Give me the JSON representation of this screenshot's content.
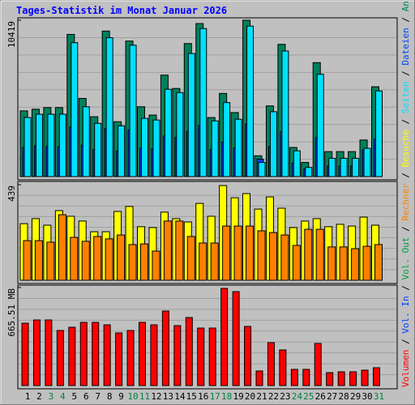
{
  "title": "Tages-Statistik im Monat Januar 2026",
  "legend_separator": " / ",
  "chart_data": [
    {
      "type": "bar",
      "ylim": [
        0,
        10419
      ],
      "yticks": [
        10419
      ],
      "series": [
        {
          "name": "Anfragen",
          "color": "#00805c",
          "values": [
            4378,
            4489,
            4600,
            4600,
            9477,
            5209,
            3990,
            9698,
            3658,
            9033,
            4655,
            4101,
            6761,
            5874,
            8867,
            10197,
            3935,
            5542,
            4267,
            10419,
            1386,
            4711,
            8812,
            1940,
            942,
            7593,
            1663,
            1663,
            1663,
            2438,
            5985
          ]
        },
        {
          "name": "Dateien",
          "color": "#0040ff",
          "values": [
            1950,
            2050,
            2000,
            1980,
            3300,
            2100,
            1800,
            3200,
            1700,
            3100,
            1900,
            1850,
            2700,
            2600,
            3000,
            3400,
            1800,
            2300,
            1900,
            3500,
            1164,
            2000,
            3000,
            900,
            500,
            2600,
            700,
            700,
            700,
            1773,
            2500
          ]
        },
        {
          "name": "Seiten",
          "color": "#00e0ff",
          "values": [
            3935,
            4157,
            4157,
            4157,
            8923,
            4655,
            3547,
            9255,
            3381,
            8756,
            3879,
            3769,
            5819,
            5597,
            8202,
            9865,
            3713,
            4932,
            3824,
            10031,
            942,
            4323,
            8368,
            1718,
            610,
            6817,
            1219,
            1219,
            1219,
            1884,
            5708
          ]
        }
      ]
    },
    {
      "type": "bar",
      "ylim": [
        0,
        439
      ],
      "yticks": [
        439
      ],
      "series": [
        {
          "name": "Besuche",
          "color": "#ffff00",
          "values": [
            260,
            283,
            253,
            320,
            294,
            272,
            223,
            223,
            316,
            339,
            246,
            242,
            313,
            283,
            268,
            353,
            294,
            435,
            379,
            398,
            327,
            383,
            331,
            242,
            272,
            283,
            246,
            257,
            249,
            290,
            253
          ]
        },
        {
          "name": "Rechner",
          "color": "#ff8000",
          "values": [
            182,
            182,
            175,
            301,
            197,
            179,
            201,
            190,
            208,
            164,
            167,
            134,
            272,
            272,
            201,
            171,
            171,
            249,
            249,
            249,
            227,
            219,
            208,
            160,
            234,
            234,
            153,
            153,
            145,
            156,
            164
          ]
        }
      ]
    },
    {
      "type": "bar",
      "ylim": [
        0,
        665.51
      ],
      "yticks": [
        {
          "value": 665.51,
          "label": "665.51 MB"
        }
      ],
      "categories": [
        "1",
        "2",
        "3",
        "4",
        "5",
        "6",
        "7",
        "8",
        "9",
        "10",
        "11",
        "12",
        "13",
        "14",
        "15",
        "16",
        "17",
        "18",
        "19",
        "20",
        "21",
        "22",
        "23",
        "24",
        "25",
        "26",
        "27",
        "28",
        "29",
        "30",
        "31"
      ],
      "category_colors": [
        "#000000",
        "#000000",
        "#008040",
        "#008040",
        "#000000",
        "#000000",
        "#000000",
        "#000000",
        "#000000",
        "#008040",
        "#008040",
        "#000000",
        "#000000",
        "#000000",
        "#000000",
        "#000000",
        "#008040",
        "#008040",
        "#000000",
        "#000000",
        "#000000",
        "#000000",
        "#000000",
        "#008040",
        "#008040",
        "#000000",
        "#000000",
        "#000000",
        "#000000",
        "#000000",
        "#008040"
      ],
      "series": [
        {
          "name": "Volumen",
          "color": "#ff0000",
          "values": [
            423.5,
            445.5,
            445.5,
            374,
            396,
            429,
            429,
            412.5,
            357.5,
            374,
            429,
            412.5,
            506,
            407,
            462,
            390.5,
            390.5,
            660,
            638,
            401.5,
            99,
            291.5,
            242,
            110,
            110,
            286,
            88,
            93.5,
            93.5,
            104.5,
            121
          ]
        }
      ],
      "legend_only": [
        {
          "name": "Vol. In",
          "color": "#0040ff"
        },
        {
          "name": "Vol. Out",
          "color": "#00a040"
        }
      ]
    }
  ]
}
